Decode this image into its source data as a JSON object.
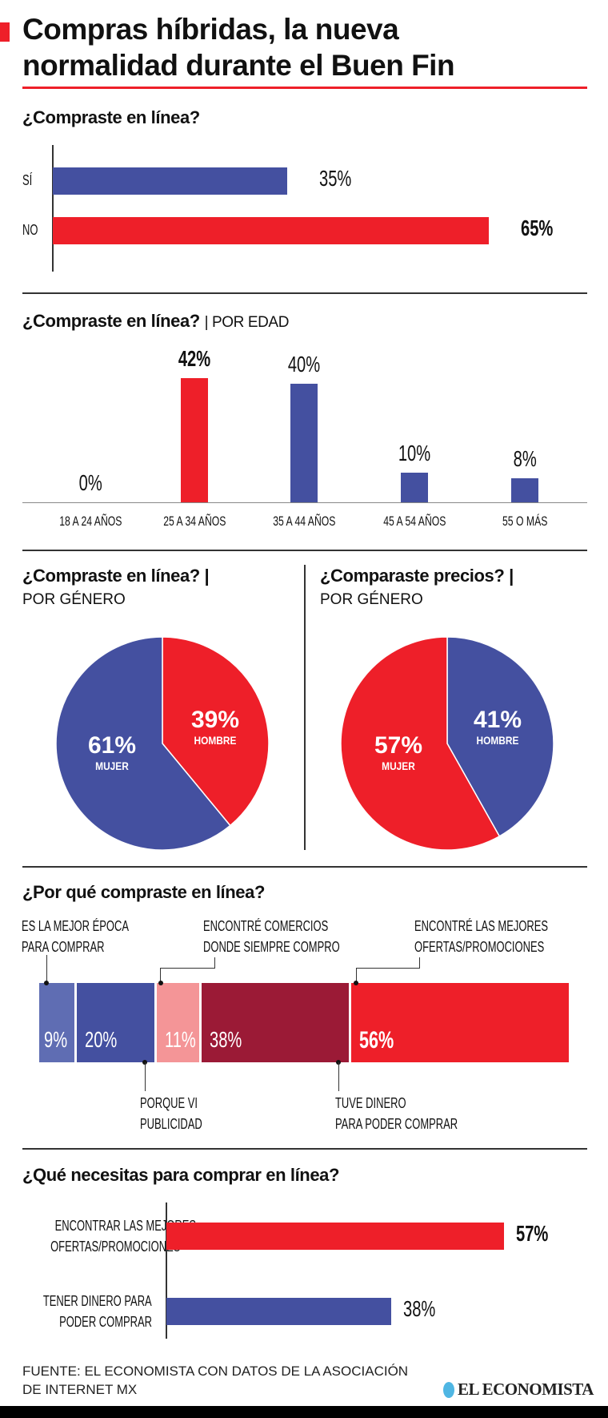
{
  "header": {
    "title_line1": "Compras híbridas, la nueva",
    "title_line2": "normalidad durante el Buen Fin",
    "accent": "#ee1f29"
  },
  "colors": {
    "blue": "#4450a0",
    "light_blue": "#5f6db3",
    "red": "#ee1f29",
    "dark_red": "#9b1a36",
    "pink": "#f49597"
  },
  "chart_data": [
    {
      "type": "bar",
      "orientation": "horizontal",
      "title": "¿Compraste en línea?",
      "categories": [
        "SÍ",
        "NO"
      ],
      "values": [
        35,
        65
      ],
      "labels": [
        "35%",
        "65%"
      ],
      "colors": [
        "#4450a0",
        "#ee1f29"
      ]
    },
    {
      "type": "bar",
      "title": "¿Compraste en línea?",
      "subtitle": "| POR EDAD",
      "categories": [
        "18 A 24 AÑOS",
        "25 A 34 AÑOS",
        "35 A 44 AÑOS",
        "45 A 54 AÑOS",
        "55 O MÁS"
      ],
      "values": [
        0,
        42,
        40,
        10,
        8
      ],
      "labels": [
        "0%",
        "42%",
        "40%",
        "10%",
        "8%"
      ],
      "colors": [
        "#4450a0",
        "#ee1f29",
        "#4450a0",
        "#4450a0",
        "#4450a0"
      ]
    },
    {
      "type": "pie",
      "title": "¿Compraste en línea? |",
      "subtitle": "POR GÉNERO",
      "slices": [
        {
          "name": "HOMBRE",
          "value": 39,
          "label": "39%",
          "color": "#ee1f29"
        },
        {
          "name": "MUJER",
          "value": 61,
          "label": "61%",
          "color": "#4450a0"
        }
      ]
    },
    {
      "type": "pie",
      "title": "¿Comparaste precios? |",
      "subtitle": "POR GÉNERO",
      "slices": [
        {
          "name": "HOMBRE",
          "value": 41,
          "label": "41%",
          "color": "#4450a0"
        },
        {
          "name": "MUJER",
          "value": 57,
          "label": "57%",
          "color": "#ee1f29"
        }
      ]
    },
    {
      "type": "bar",
      "orientation": "stacked",
      "title": "¿Por qué compraste en línea?",
      "segments": [
        {
          "name": "ES LA MEJOR ÉPOCA PARA COMPRAR",
          "value": 9,
          "label": "9%",
          "color": "#5f6db3"
        },
        {
          "name": "PORQUE VI PUBLICIDAD",
          "value": 20,
          "label": "20%",
          "color": "#4450a0"
        },
        {
          "name": "ENCONTRÉ COMERCIOS DONDE SIEMPRE COMPRO",
          "value": 11,
          "label": "11%",
          "color": "#f49597"
        },
        {
          "name": "TUVE DINERO PARA PODER COMPRAR",
          "value": 38,
          "label": "38%",
          "color": "#9b1a36"
        },
        {
          "name": "ENCONTRÉ LAS MEJORES OFERTAS/PROMOCIONES",
          "value": 56,
          "label": "56%",
          "color": "#ee1f29"
        }
      ]
    },
    {
      "type": "bar",
      "orientation": "horizontal",
      "title": "¿Qué necesitas para comprar en línea?",
      "categories": [
        "ENCONTRAR LAS MEJORES OFERTAS/PROMOCIONES",
        "TENER DINERO PARA PODER COMPRAR"
      ],
      "values": [
        57,
        38
      ],
      "labels": [
        "57%",
        "38%"
      ],
      "colors": [
        "#ee1f29",
        "#4450a0"
      ]
    }
  ],
  "callouts": {
    "seg0": [
      "ES LA MEJOR ÉPOCA",
      "PARA COMPRAR"
    ],
    "seg1": [
      "PORQUE VI",
      "PUBLICIDAD"
    ],
    "seg2": [
      "ENCONTRÉ COMERCIOS",
      "DONDE SIEMPRE COMPRO"
    ],
    "seg3": [
      "TUVE DINERO",
      "PARA PODER COMPRAR"
    ],
    "seg4": [
      "ENCONTRÉ LAS MEJORES",
      "OFERTAS/PROMOCIONES"
    ]
  },
  "q5_labels": [
    [
      "ENCONTRAR LAS MEJORES",
      "OFERTAS/PROMOCIONES"
    ],
    [
      "TENER DINERO PARA",
      "PODER COMPRAR"
    ]
  ],
  "footer": {
    "source_line1": "FUENTE: EL ECONOMISTA CON DATOS DE LA ASOCIACIÓN",
    "source_line2": "DE INTERNET MX",
    "logo": "EL ECONOMISTA"
  }
}
